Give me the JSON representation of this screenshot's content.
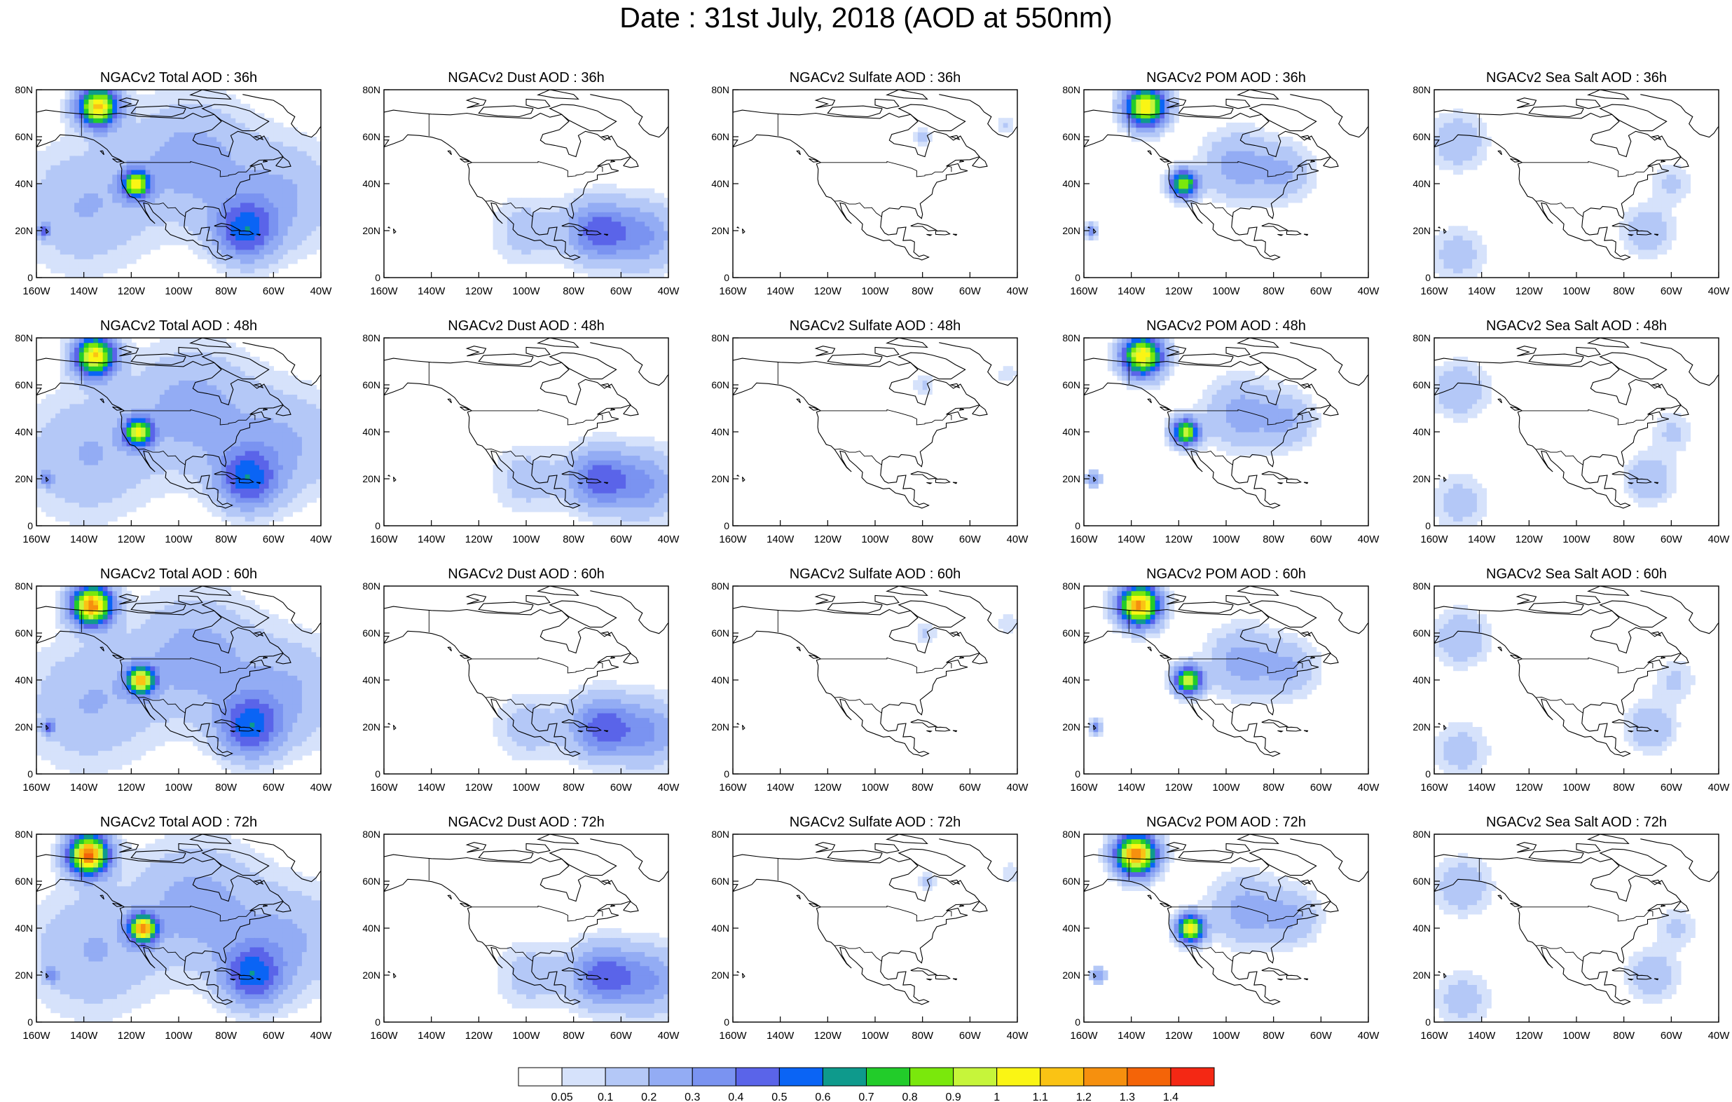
{
  "main_title": "Date : 31st July, 2018 (AOD at 550nm)",
  "chart_data": {
    "type": "heatmap",
    "title": "Date : 31st July, 2018 (AOD at 550nm)",
    "x_ticks": [
      "160W",
      "140W",
      "120W",
      "100W",
      "80W",
      "60W",
      "40W"
    ],
    "y_ticks": [
      "0",
      "20N",
      "40N",
      "60N",
      "80N"
    ],
    "xlim": [
      -160,
      -40
    ],
    "ylim": [
      0,
      80
    ],
    "forecast_hours": [
      "36h",
      "48h",
      "60h",
      "72h"
    ],
    "products": [
      "Total",
      "Dust",
      "Sulfate",
      "POM",
      "Sea Salt"
    ],
    "panels": [
      [
        {
          "title": "NGACv2 Total AOD : 36h",
          "product": "Total",
          "hour": 36
        },
        {
          "title": "NGACv2 Dust AOD : 36h",
          "product": "Dust",
          "hour": 36
        },
        {
          "title": "NGACv2 Sulfate AOD : 36h",
          "product": "Sulfate",
          "hour": 36
        },
        {
          "title": "NGACv2 POM AOD : 36h",
          "product": "POM",
          "hour": 36
        },
        {
          "title": "NGACv2 Sea Salt AOD : 36h",
          "product": "Sea Salt",
          "hour": 36
        }
      ],
      [
        {
          "title": "NGACv2 Total AOD : 48h",
          "product": "Total",
          "hour": 48
        },
        {
          "title": "NGACv2 Dust AOD : 48h",
          "product": "Dust",
          "hour": 48
        },
        {
          "title": "NGACv2 Sulfate AOD : 48h",
          "product": "Sulfate",
          "hour": 48
        },
        {
          "title": "NGACv2 POM AOD : 48h",
          "product": "POM",
          "hour": 48
        },
        {
          "title": "NGACv2 Sea Salt AOD : 48h",
          "product": "Sea Salt",
          "hour": 48
        }
      ],
      [
        {
          "title": "NGACv2 Total AOD : 60h",
          "product": "Total",
          "hour": 60
        },
        {
          "title": "NGACv2 Dust AOD : 60h",
          "product": "Dust",
          "hour": 60
        },
        {
          "title": "NGACv2 Sulfate AOD : 60h",
          "product": "Sulfate",
          "hour": 60
        },
        {
          "title": "NGACv2 POM AOD : 60h",
          "product": "POM",
          "hour": 60
        },
        {
          "title": "NGACv2 Sea Salt AOD : 60h",
          "product": "Sea Salt",
          "hour": 60
        }
      ],
      [
        {
          "title": "NGACv2 Total AOD : 72h",
          "product": "Total",
          "hour": 72
        },
        {
          "title": "NGACv2 Dust AOD : 72h",
          "product": "Dust",
          "hour": 72
        },
        {
          "title": "NGACv2 Sulfate AOD : 72h",
          "product": "Sulfate",
          "hour": 72
        },
        {
          "title": "NGACv2 POM AOD : 72h",
          "product": "POM",
          "hour": 72
        },
        {
          "title": "NGACv2 Sea Salt  AOD : 72h",
          "product": "Sea Salt",
          "hour": 72
        }
      ]
    ],
    "colorbar": {
      "levels": [
        "0.05",
        "0.1",
        "0.2",
        "0.3",
        "0.4",
        "0.5",
        "0.6",
        "0.7",
        "0.8",
        "0.9",
        "1",
        "1.1",
        "1.2",
        "1.3",
        "1.4"
      ],
      "colors": [
        "#ffffff",
        "#d6e2fb",
        "#b4c8f7",
        "#93acf4",
        "#7a93f1",
        "#5a64e9",
        "#0a64f5",
        "#0e9a8c",
        "#22cc2a",
        "#7ae80c",
        "#c6f53a",
        "#faf514",
        "#fac314",
        "#f6900e",
        "#f46408",
        "#f42814"
      ]
    },
    "plumes": {
      "Total": [
        {
          "lon": -134,
          "lat": 73,
          "value": 1.2,
          "spread": 6
        },
        {
          "lon": -118,
          "lat": 40,
          "value": 1.0,
          "spread": 4
        },
        {
          "lon": -72,
          "lat": 20,
          "value": 0.5,
          "spread": 9
        },
        {
          "lon": -95,
          "lat": 50,
          "value": 0.25,
          "spread": 18
        },
        {
          "lon": -140,
          "lat": 30,
          "value": 0.2,
          "spread": 18
        },
        {
          "lon": -55,
          "lat": 35,
          "value": 0.2,
          "spread": 16
        },
        {
          "lon": -157,
          "lat": 20,
          "value": 0.35,
          "spread": 2
        }
      ],
      "Dust": [
        {
          "lon": -70,
          "lat": 20,
          "value": 0.45,
          "spread": 9
        },
        {
          "lon": -50,
          "lat": 18,
          "value": 0.3,
          "spread": 10
        },
        {
          "lon": -100,
          "lat": 20,
          "value": 0.15,
          "spread": 10
        }
      ],
      "Sulfate": [
        {
          "lon": -80,
          "lat": 60,
          "value": 0.12,
          "spread": 3
        },
        {
          "lon": -45,
          "lat": 65,
          "value": 0.1,
          "spread": 3
        }
      ],
      "POM": [
        {
          "lon": -134,
          "lat": 73,
          "value": 1.2,
          "spread": 6
        },
        {
          "lon": -118,
          "lat": 40,
          "value": 1.0,
          "spread": 4
        },
        {
          "lon": -95,
          "lat": 48,
          "value": 0.25,
          "spread": 10
        },
        {
          "lon": -75,
          "lat": 45,
          "value": 0.2,
          "spread": 8
        },
        {
          "lon": -157,
          "lat": 20,
          "value": 0.35,
          "spread": 2
        }
      ],
      "Sea Salt": [
        {
          "lon": -150,
          "lat": 58,
          "value": 0.2,
          "spread": 8
        },
        {
          "lon": -70,
          "lat": 20,
          "value": 0.2,
          "spread": 7
        },
        {
          "lon": -150,
          "lat": 10,
          "value": 0.15,
          "spread": 8
        },
        {
          "lon": -60,
          "lat": 40,
          "value": 0.12,
          "spread": 6
        }
      ]
    }
  }
}
